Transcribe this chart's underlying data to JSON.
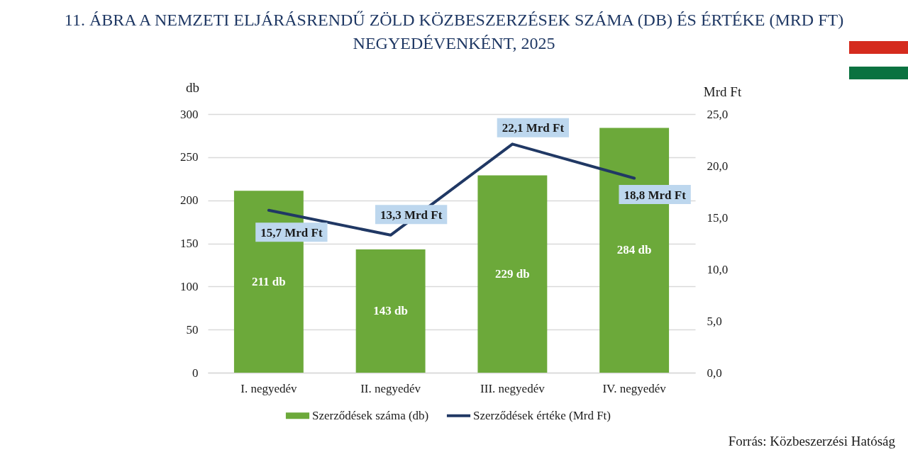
{
  "chart_data": {
    "type": "bar",
    "title": "11. ÁBRA A NEMZETI ELJÁRÁSRENDŰ ZÖLD KÖZBESZERZÉSEK SZÁMA (DB) ÉS ÉRTÉKE (MRD FT) NEGYEDÉVENKÉNT, 2025",
    "ylabel": "db",
    "y2label": "Mrd Ft",
    "categories": [
      "I. negyedév",
      "II. negyedév",
      "III. negyedév",
      "IV. negyedév"
    ],
    "series": [
      {
        "name": "Szerződések száma (db)",
        "color": "#6ca93a",
        "values": [
          211,
          143,
          229,
          284
        ],
        "value_labels": [
          "211 db",
          "143 db",
          "229 db",
          "284 db"
        ]
      },
      {
        "name": "Szerződések értéke (Mrd Ft)",
        "type": "line",
        "axis": "y2",
        "color": "#203864",
        "values": [
          15.7,
          13.3,
          22.1,
          18.8
        ],
        "value_labels": [
          "15,7 Mrd Ft",
          "13,3 Mrd Ft",
          "22,1 Mrd Ft",
          "18,8 Mrd Ft"
        ]
      }
    ],
    "ylim": [
      0,
      300
    ],
    "yticks": [
      0,
      50,
      100,
      150,
      200,
      250,
      300
    ],
    "y2lim": [
      0,
      25
    ],
    "y2ticks": [
      {
        "value": 0,
        "label": "0,0"
      },
      {
        "value": 5,
        "label": "5,0"
      },
      {
        "value": 10,
        "label": "10,0"
      },
      {
        "value": 15,
        "label": "15,0"
      },
      {
        "value": 20,
        "label": "20,0"
      },
      {
        "value": 25,
        "label": "25,0"
      }
    ],
    "grid": "y",
    "legend": "bottom",
    "marker": "none",
    "line_style": "solid",
    "annotations": [
      "Forrás: Közbeszerzési Hatóság"
    ]
  }
}
